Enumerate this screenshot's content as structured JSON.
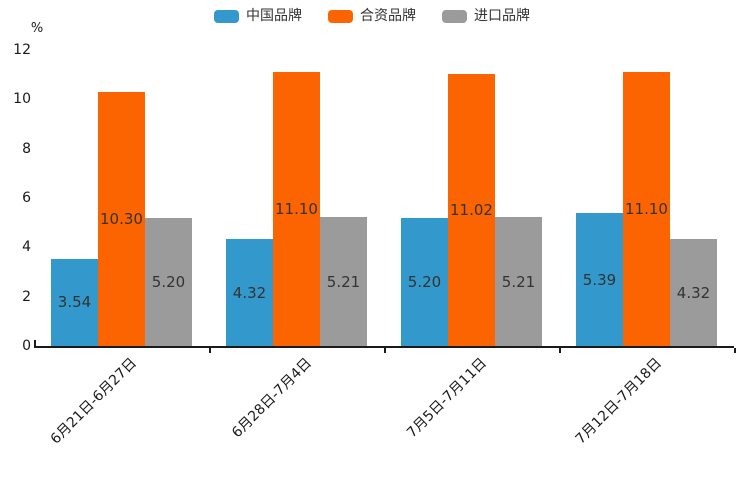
{
  "chart_data": {
    "type": "bar",
    "title": "",
    "unit_label": "%",
    "categories": [
      "6月21日-6月27日",
      "6月28日-7月4日",
      "7月5日-7月11日",
      "7月12日-7月18日"
    ],
    "series": [
      {
        "id": "china-brand",
        "name": "中国品牌",
        "color": "#3398CB",
        "values": [
          3.54,
          4.32,
          5.2,
          5.39
        ]
      },
      {
        "id": "joint-venture-brand",
        "name": "合资品牌",
        "color": "#FB6400",
        "values": [
          10.3,
          11.1,
          11.02,
          11.1
        ]
      },
      {
        "id": "import-brand",
        "name": "进口品牌",
        "color": "#9B9B9B",
        "values": [
          5.2,
          5.21,
          5.21,
          4.32
        ]
      }
    ],
    "y_ticks": [
      0,
      2,
      4,
      6,
      8,
      10,
      12
    ],
    "ylim": [
      0,
      12
    ],
    "value_label_decimals": 2,
    "legend_position": "top",
    "grid": false,
    "axis_color": "#1a1a1a",
    "value_label_color": "#333333"
  }
}
